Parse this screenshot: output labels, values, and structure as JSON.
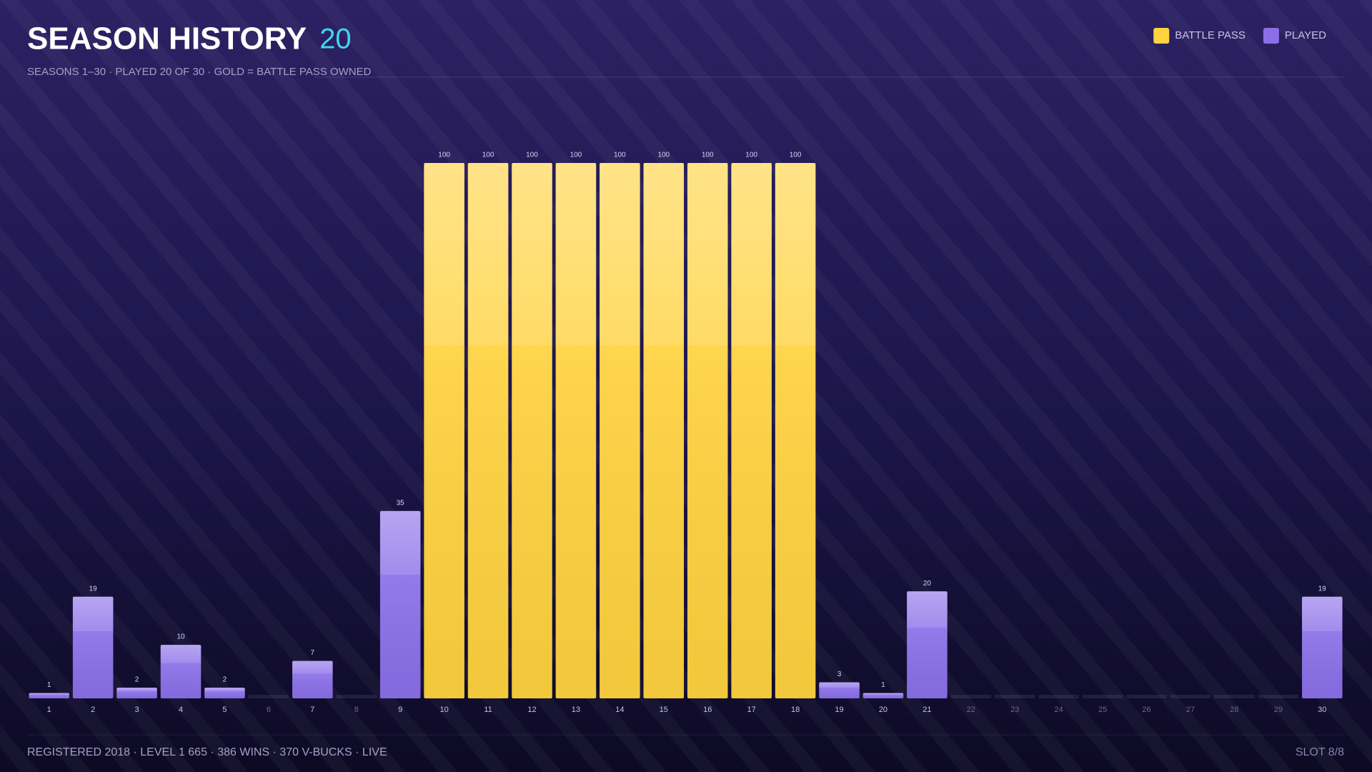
{
  "chart_data": {
    "type": "bar",
    "title": "SEASON HISTORY",
    "title_count": "20",
    "subtitle": "SEASONS 1–30  ·  PLAYED 20 OF 30  ·  GOLD = BATTLE PASS OWNED",
    "categories": [
      "1",
      "2",
      "3",
      "4",
      "5",
      "6",
      "7",
      "8",
      "9",
      "10",
      "11",
      "12",
      "13",
      "14",
      "15",
      "16",
      "17",
      "18",
      "19",
      "20",
      "21",
      "22",
      "23",
      "24",
      "25",
      "26",
      "27",
      "28",
      "29",
      "30"
    ],
    "series": [
      {
        "name": "BATTLE PASS",
        "color": "#ffd23f",
        "values": [
          null,
          null,
          null,
          null,
          null,
          null,
          null,
          null,
          null,
          100,
          100,
          100,
          100,
          100,
          100,
          100,
          100,
          100,
          null,
          null,
          null,
          null,
          null,
          null,
          null,
          null,
          null,
          null,
          null,
          null
        ]
      },
      {
        "name": "PLAYED",
        "color": "#8b6fe8",
        "values": [
          1,
          19,
          2,
          10,
          2,
          null,
          7,
          null,
          35,
          null,
          null,
          null,
          null,
          null,
          null,
          null,
          null,
          null,
          3,
          1,
          20,
          null,
          null,
          null,
          null,
          null,
          null,
          null,
          null,
          19
        ]
      }
    ],
    "ylim": [
      0,
      100
    ],
    "legend": "top-right",
    "footer": "REGISTERED 2018  ·  LEVEL 1 665  ·  386 WINS  ·  370 V-BUCKS  ·  LIVE",
    "slot": "SLOT 8/8"
  }
}
